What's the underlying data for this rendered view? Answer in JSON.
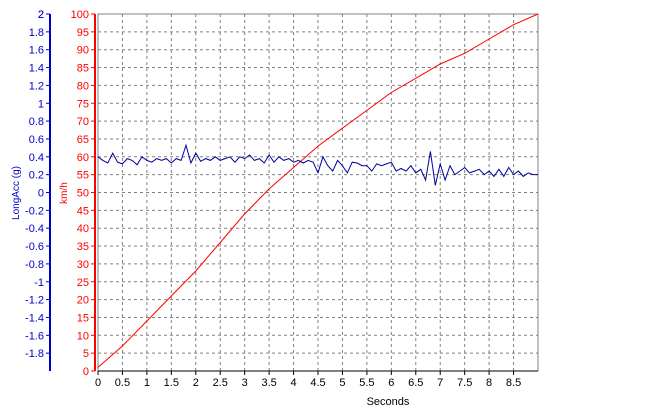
{
  "chart_data": {
    "type": "line",
    "xlabel": "Seconds",
    "xlim": [
      0,
      9
    ],
    "x_ticks": [
      "0",
      "0.5",
      "1",
      "1.5",
      "2",
      "2.5",
      "3",
      "3.5",
      "4",
      "4.5",
      "5",
      "5.5",
      "6",
      "6.5",
      "7",
      "7.5",
      "8",
      "8.5"
    ],
    "grid": true,
    "axes": [
      {
        "id": "speed",
        "label": "km/h",
        "color": "#ff0000",
        "ylim": [
          0,
          100
        ],
        "ticks": [
          "0",
          "5",
          "10",
          "15",
          "20",
          "25",
          "30",
          "35",
          "40",
          "45",
          "50",
          "55",
          "60",
          "65",
          "70",
          "75",
          "80",
          "85",
          "90",
          "95",
          "100"
        ]
      },
      {
        "id": "accel",
        "label": "LongAcc (g)",
        "color": "#0000cc",
        "ylim": [
          -2,
          2
        ],
        "ticks": [
          "-1.8",
          "-1.6",
          "-1.4",
          "-1.2",
          "-1",
          "-0.8",
          "-0.6",
          "-0.4",
          "-0.2",
          "0",
          "0.2",
          "0.4",
          "0.6",
          "0.8",
          "1",
          "1.2",
          "1.4",
          "1.6",
          "1.8",
          "2"
        ]
      }
    ],
    "series": [
      {
        "axis": "speed",
        "color": "#ff0000",
        "points": [
          [
            0,
            1
          ],
          [
            0.5,
            7
          ],
          [
            1,
            14
          ],
          [
            1.5,
            21
          ],
          [
            2,
            28
          ],
          [
            2.5,
            36
          ],
          [
            3,
            44
          ],
          [
            3.5,
            51
          ],
          [
            4,
            57
          ],
          [
            4.5,
            63
          ],
          [
            5,
            68
          ],
          [
            5.5,
            73
          ],
          [
            6,
            78
          ],
          [
            6.5,
            82
          ],
          [
            7,
            86
          ],
          [
            7.5,
            89
          ],
          [
            8,
            93
          ],
          [
            8.5,
            97
          ],
          [
            9,
            100
          ]
        ]
      },
      {
        "axis": "accel",
        "color": "#000099",
        "points": [
          [
            0,
            0.4
          ],
          [
            0.1,
            0.36
          ],
          [
            0.2,
            0.33
          ],
          [
            0.3,
            0.44
          ],
          [
            0.4,
            0.34
          ],
          [
            0.5,
            0.32
          ],
          [
            0.6,
            0.38
          ],
          [
            0.7,
            0.36
          ],
          [
            0.8,
            0.31
          ],
          [
            0.9,
            0.4
          ],
          [
            1.0,
            0.36
          ],
          [
            1.1,
            0.34
          ],
          [
            1.2,
            0.38
          ],
          [
            1.3,
            0.36
          ],
          [
            1.4,
            0.38
          ],
          [
            1.5,
            0.33
          ],
          [
            1.6,
            0.38
          ],
          [
            1.7,
            0.36
          ],
          [
            1.8,
            0.53
          ],
          [
            1.9,
            0.33
          ],
          [
            2.0,
            0.44
          ],
          [
            2.1,
            0.35
          ],
          [
            2.2,
            0.38
          ],
          [
            2.3,
            0.36
          ],
          [
            2.4,
            0.4
          ],
          [
            2.5,
            0.36
          ],
          [
            2.6,
            0.38
          ],
          [
            2.7,
            0.4
          ],
          [
            2.8,
            0.34
          ],
          [
            2.9,
            0.4
          ],
          [
            3.0,
            0.38
          ],
          [
            3.1,
            0.42
          ],
          [
            3.2,
            0.36
          ],
          [
            3.3,
            0.38
          ],
          [
            3.4,
            0.33
          ],
          [
            3.5,
            0.42
          ],
          [
            3.6,
            0.34
          ],
          [
            3.7,
            0.4
          ],
          [
            3.8,
            0.36
          ],
          [
            3.9,
            0.38
          ],
          [
            4.0,
            0.34
          ],
          [
            4.1,
            0.36
          ],
          [
            4.2,
            0.33
          ],
          [
            4.3,
            0.36
          ],
          [
            4.4,
            0.34
          ],
          [
            4.5,
            0.22
          ],
          [
            4.6,
            0.4
          ],
          [
            4.7,
            0.3
          ],
          [
            4.8,
            0.24
          ],
          [
            4.9,
            0.36
          ],
          [
            5.0,
            0.3
          ],
          [
            5.1,
            0.22
          ],
          [
            5.2,
            0.34
          ],
          [
            5.3,
            0.33
          ],
          [
            5.4,
            0.3
          ],
          [
            5.5,
            0.3
          ],
          [
            5.6,
            0.24
          ],
          [
            5.7,
            0.32
          ],
          [
            5.8,
            0.3
          ],
          [
            5.9,
            0.32
          ],
          [
            6.0,
            0.34
          ],
          [
            6.1,
            0.24
          ],
          [
            6.2,
            0.27
          ],
          [
            6.3,
            0.24
          ],
          [
            6.4,
            0.3
          ],
          [
            6.5,
            0.22
          ],
          [
            6.6,
            0.26
          ],
          [
            6.7,
            0.14
          ],
          [
            6.8,
            0.46
          ],
          [
            6.9,
            0.08
          ],
          [
            7.0,
            0.32
          ],
          [
            7.1,
            0.14
          ],
          [
            7.2,
            0.3
          ],
          [
            7.3,
            0.2
          ],
          [
            7.4,
            0.24
          ],
          [
            7.5,
            0.28
          ],
          [
            7.6,
            0.22
          ],
          [
            7.7,
            0.24
          ],
          [
            7.8,
            0.26
          ],
          [
            7.9,
            0.2
          ],
          [
            8.0,
            0.24
          ],
          [
            8.1,
            0.18
          ],
          [
            8.2,
            0.26
          ],
          [
            8.3,
            0.18
          ],
          [
            8.4,
            0.28
          ],
          [
            8.5,
            0.2
          ],
          [
            8.6,
            0.24
          ],
          [
            8.7,
            0.18
          ],
          [
            8.8,
            0.22
          ],
          [
            8.9,
            0.2
          ],
          [
            9.0,
            0.2
          ]
        ]
      }
    ]
  }
}
